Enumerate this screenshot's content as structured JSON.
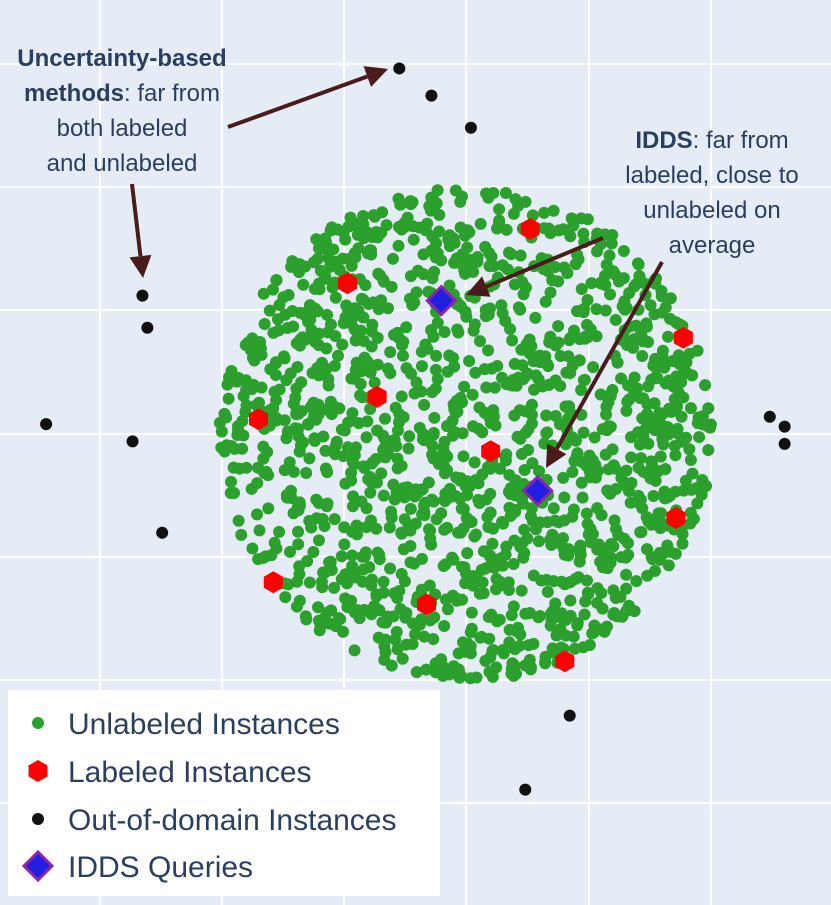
{
  "chart_data": {
    "type": "scatter",
    "title": "",
    "xlabel": "",
    "ylabel": "",
    "grid": true,
    "legend_placement": "bottom-left",
    "colors": {
      "background": "#e5ecf6",
      "grid": "#ffffff",
      "unlabeled": "#2ca02c",
      "labeled": "#ff0000",
      "out_of_domain": "#111111",
      "idds": "#1f1fe0",
      "idds_border": "#8e24aa",
      "arrow": "#4a1b1b",
      "text": "#2a3f5f"
    },
    "series": [
      {
        "name": "Unlabeled Instances",
        "marker": "circle",
        "distribution": "uniform disk",
        "center": [
          0,
          0
        ],
        "radius": 1.0,
        "count": 1500
      },
      {
        "name": "Labeled Instances",
        "marker": "hexagon",
        "x": [
          0.26,
          -0.48,
          0.88,
          -0.36,
          -0.84,
          0.1,
          0.85,
          -0.78,
          -0.16,
          0.4
        ],
        "y": [
          0.83,
          0.61,
          0.39,
          0.15,
          0.06,
          -0.07,
          -0.34,
          -0.6,
          -0.69,
          -0.92
        ]
      },
      {
        "name": "Out-of-domain Instances",
        "marker": "dot",
        "x": [
          -0.27,
          -0.14,
          0.02,
          -1.31,
          -1.29,
          -1.7,
          -1.35,
          -1.23,
          1.23,
          1.29,
          1.29,
          0.42,
          0.24
        ],
        "y": [
          1.48,
          1.37,
          1.24,
          0.56,
          0.43,
          0.04,
          -0.03,
          -0.4,
          0.07,
          0.03,
          -0.04,
          -1.14,
          -1.44
        ]
      },
      {
        "name": "IDDS Queries",
        "marker": "diamond",
        "x": [
          -0.1,
          0.29
        ],
        "y": [
          0.54,
          -0.23
        ]
      }
    ],
    "annotations": [
      {
        "id": "uncertainty",
        "lines": [
          [
            {
              "text": "Uncertainty-based",
              "bold": true
            }
          ],
          [
            {
              "text": "methods",
              "bold": true
            },
            {
              "text": ": far from",
              "bold": false
            }
          ],
          [
            {
              "text": "both labeled",
              "bold": false
            }
          ],
          [
            {
              "text": "and unlabeled",
              "bold": false
            }
          ]
        ]
      },
      {
        "id": "idds",
        "lines": [
          [
            {
              "text": "IDDS",
              "bold": true
            },
            {
              "text": ": far from",
              "bold": false
            }
          ],
          [
            {
              "text": "labeled, close to",
              "bold": false
            }
          ],
          [
            {
              "text": "unlabeled on",
              "bold": false
            }
          ],
          [
            {
              "text": "average",
              "bold": false
            }
          ]
        ]
      }
    ]
  }
}
